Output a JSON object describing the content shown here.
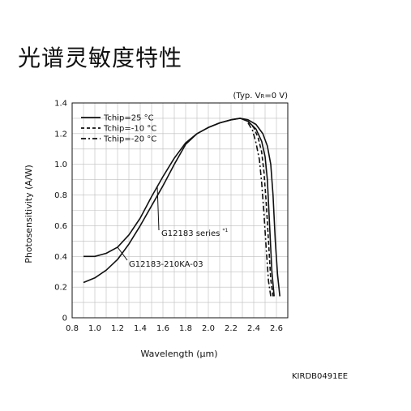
{
  "page": {
    "title": "光谱灵敏度特性",
    "doc_code": "KIRDB0491EE"
  },
  "chart_data": {
    "type": "line",
    "title": "光谱灵敏度特性",
    "condition": "(Typ. VR=0 V)",
    "condition_parts": {
      "pre": "(Typ. V",
      "sub": "R",
      "post": "=0 V)"
    },
    "xlabel": "Wavelength (µm)",
    "ylabel": "Photosensitivity (A/W)",
    "xlim": [
      0.8,
      2.7
    ],
    "ylim": [
      0,
      1.4
    ],
    "xticks": [
      "0.8",
      "1.0",
      "1.2",
      "1.4",
      "1.6",
      "1.8",
      "2.0",
      "2.2",
      "2.4",
      "2.6"
    ],
    "yticks": [
      "0",
      "0.2",
      "0.4",
      "0.6",
      "0.8",
      "1.0",
      "1.2",
      "1.4"
    ],
    "grid": true,
    "legend_position": "top-left",
    "legend": [
      "Tchip=25 °C",
      "Tchip=-10 °C",
      "Tchip=-20 °C"
    ],
    "annotations": [
      {
        "text": "G12183 series",
        "superscript": "*1"
      },
      {
        "text": "G12183-210KA-03",
        "superscript": ""
      }
    ],
    "series": [
      {
        "name": "Tchip=25 °C",
        "product": "G12183 series",
        "style": "solid",
        "points": [
          [
            0.9,
            0.4
          ],
          [
            1.0,
            0.4
          ],
          [
            1.1,
            0.42
          ],
          [
            1.2,
            0.46
          ],
          [
            1.3,
            0.54
          ],
          [
            1.4,
            0.65
          ],
          [
            1.5,
            0.79
          ],
          [
            1.6,
            0.92
          ],
          [
            1.7,
            1.04
          ],
          [
            1.8,
            1.14
          ],
          [
            1.9,
            1.2
          ],
          [
            2.0,
            1.24
          ],
          [
            2.1,
            1.27
          ],
          [
            2.2,
            1.29
          ],
          [
            2.28,
            1.3
          ],
          [
            2.35,
            1.28
          ],
          [
            2.42,
            1.23
          ],
          [
            2.47,
            1.15
          ],
          [
            2.5,
            1.05
          ],
          [
            2.52,
            0.9
          ],
          [
            2.54,
            0.6
          ],
          [
            2.56,
            0.3
          ],
          [
            2.58,
            0.14
          ]
        ]
      },
      {
        "name": "Tchip=25 °C",
        "product": "G12183-210KA-03",
        "style": "solid",
        "points": [
          [
            0.9,
            0.23
          ],
          [
            1.0,
            0.26
          ],
          [
            1.1,
            0.31
          ],
          [
            1.2,
            0.38
          ],
          [
            1.3,
            0.48
          ],
          [
            1.4,
            0.6
          ],
          [
            1.5,
            0.73
          ],
          [
            1.6,
            0.86
          ],
          [
            1.7,
            1.0
          ],
          [
            1.8,
            1.13
          ],
          [
            1.9,
            1.2
          ],
          [
            2.0,
            1.24
          ],
          [
            2.1,
            1.27
          ],
          [
            2.2,
            1.29
          ],
          [
            2.28,
            1.3
          ],
          [
            2.35,
            1.29
          ],
          [
            2.42,
            1.26
          ],
          [
            2.48,
            1.2
          ],
          [
            2.52,
            1.12
          ],
          [
            2.55,
            1.0
          ],
          [
            2.57,
            0.8
          ],
          [
            2.59,
            0.5
          ],
          [
            2.61,
            0.28
          ],
          [
            2.63,
            0.14
          ]
        ]
      },
      {
        "name": "Tchip=-10 °C",
        "product": "G12183 series",
        "style": "dashed",
        "points": [
          [
            2.35,
            1.28
          ],
          [
            2.4,
            1.24
          ],
          [
            2.44,
            1.17
          ],
          [
            2.47,
            1.08
          ],
          [
            2.49,
            0.95
          ],
          [
            2.51,
            0.75
          ],
          [
            2.53,
            0.5
          ],
          [
            2.55,
            0.25
          ],
          [
            2.57,
            0.14
          ]
        ]
      },
      {
        "name": "Tchip=-20 °C",
        "product": "G12183 series",
        "style": "dashdot",
        "points": [
          [
            2.35,
            1.27
          ],
          [
            2.39,
            1.22
          ],
          [
            2.42,
            1.14
          ],
          [
            2.45,
            1.03
          ],
          [
            2.47,
            0.88
          ],
          [
            2.49,
            0.68
          ],
          [
            2.51,
            0.45
          ],
          [
            2.53,
            0.24
          ],
          [
            2.55,
            0.14
          ]
        ]
      }
    ]
  }
}
